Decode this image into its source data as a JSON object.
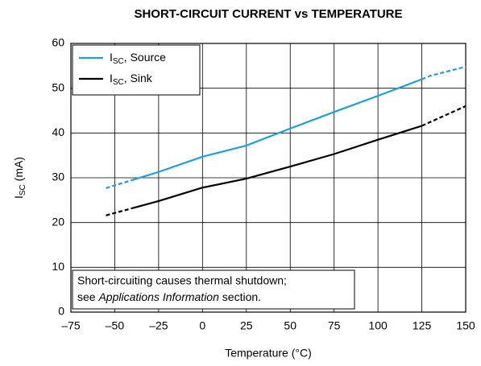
{
  "chart_data": {
    "type": "line",
    "title": "SHORT-CIRCUIT CURRENT vs TEMPERATURE",
    "xlabel": "Temperature (°C)",
    "ylabel": [
      "I",
      "SC",
      " (mA)"
    ],
    "xlim": [
      -75,
      150
    ],
    "xticks": [
      {
        "value": -75,
        "label": "–75"
      },
      {
        "value": -50,
        "label": "–50"
      },
      {
        "value": -25,
        "label": "–25"
      },
      0,
      25,
      50,
      75,
      100,
      125,
      150
    ],
    "ylim": [
      0,
      60
    ],
    "yticks": [
      0,
      10,
      20,
      30,
      40,
      50,
      60
    ],
    "grid": true,
    "legend": "upper left",
    "series": [
      {
        "name": [
          "I",
          "SC",
          ", Source"
        ],
        "color": "#1ba1e2",
        "solid_from": -40,
        "solid_to": 125,
        "x": [
          -55,
          -40,
          -25,
          0,
          25,
          50,
          75,
          100,
          125,
          130,
          150
        ],
        "values": [
          27.7,
          29.5,
          31.3,
          34.7,
          37.2,
          41,
          44.7,
          48.3,
          52,
          52.8,
          54.8
        ]
      },
      {
        "name": [
          "I",
          "SC",
          ", Sink"
        ],
        "color": "#000000",
        "solid_from": -40,
        "solid_to": 125,
        "x": [
          -55,
          -40,
          -25,
          0,
          25,
          50,
          75,
          100,
          125,
          150
        ],
        "values": [
          21.6,
          23.2,
          24.8,
          27.8,
          29.8,
          32.5,
          35.3,
          38.5,
          41.6,
          46
        ]
      }
    ],
    "annotation": [
      "Short-circuiting causes thermal shutdown;",
      [
        "see ",
        "Applications Information",
        " section."
      ]
    ]
  }
}
